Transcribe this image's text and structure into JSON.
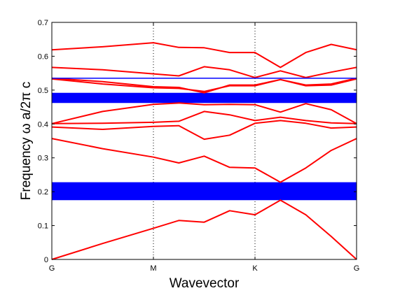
{
  "chart_data": {
    "type": "line",
    "title": "",
    "xlabel": "Wavevector",
    "ylabel": "Frequency ω a/2π c",
    "xlim": [
      0,
      3
    ],
    "ylim": [
      0,
      0.7
    ],
    "x_ticks": [
      {
        "value": 0,
        "label": "G"
      },
      {
        "value": 1,
        "label": "M"
      },
      {
        "value": 2,
        "label": "K"
      },
      {
        "value": 3,
        "label": "G"
      }
    ],
    "y_ticks": [
      0,
      0.1,
      0.2,
      0.3,
      0.4,
      0.5,
      0.6,
      0.7
    ],
    "grid": "dotted vertical lines at M and K",
    "legend": "none",
    "colors": {
      "bands": "#ff0000",
      "gaps": "#0000ff",
      "axis": "#000000"
    },
    "x": [
      0,
      0.5,
      1,
      1.25,
      1.5,
      1.75,
      2,
      2.25,
      2.5,
      2.75,
      3
    ],
    "series": [
      {
        "values": [
          0,
          0.047,
          0.092,
          0.115,
          0.11,
          0.144,
          0.132,
          0.175,
          0.132,
          0.068,
          0
        ]
      },
      {
        "values": [
          0.357,
          0.327,
          0.302,
          0.285,
          0.305,
          0.272,
          0.27,
          0.228,
          0.27,
          0.322,
          0.357
        ]
      },
      {
        "values": [
          0.391,
          0.384,
          0.393,
          0.395,
          0.355,
          0.367,
          0.402,
          0.41,
          0.402,
          0.388,
          0.391
        ]
      },
      {
        "values": [
          0.401,
          0.402,
          0.405,
          0.408,
          0.437,
          0.427,
          0.41,
          0.42,
          0.41,
          0.403,
          0.401
        ]
      },
      {
        "values": [
          0.401,
          0.437,
          0.458,
          0.462,
          0.457,
          0.458,
          0.457,
          0.435,
          0.46,
          0.442,
          0.401
        ]
      },
      {
        "values": [
          0.533,
          0.518,
          0.507,
          0.505,
          0.496,
          0.513,
          0.513,
          0.531,
          0.513,
          0.515,
          0.533
        ]
      },
      {
        "values": [
          0.535,
          0.525,
          0.51,
          0.508,
          0.492,
          0.515,
          0.515,
          0.531,
          0.515,
          0.518,
          0.535
        ]
      },
      {
        "values": [
          0.567,
          0.56,
          0.548,
          0.542,
          0.569,
          0.56,
          0.537,
          0.557,
          0.537,
          0.553,
          0.567
        ]
      },
      {
        "values": [
          0.619,
          0.628,
          0.64,
          0.626,
          0.625,
          0.611,
          0.611,
          0.567,
          0.611,
          0.635,
          0.619
        ]
      }
    ],
    "band_gaps": [
      {
        "y_min": 0.175,
        "y_max": 0.228
      },
      {
        "y_min": 0.462,
        "y_max": 0.492
      }
    ],
    "reference_line": {
      "y": 0.535,
      "color": "#0000ff"
    }
  }
}
